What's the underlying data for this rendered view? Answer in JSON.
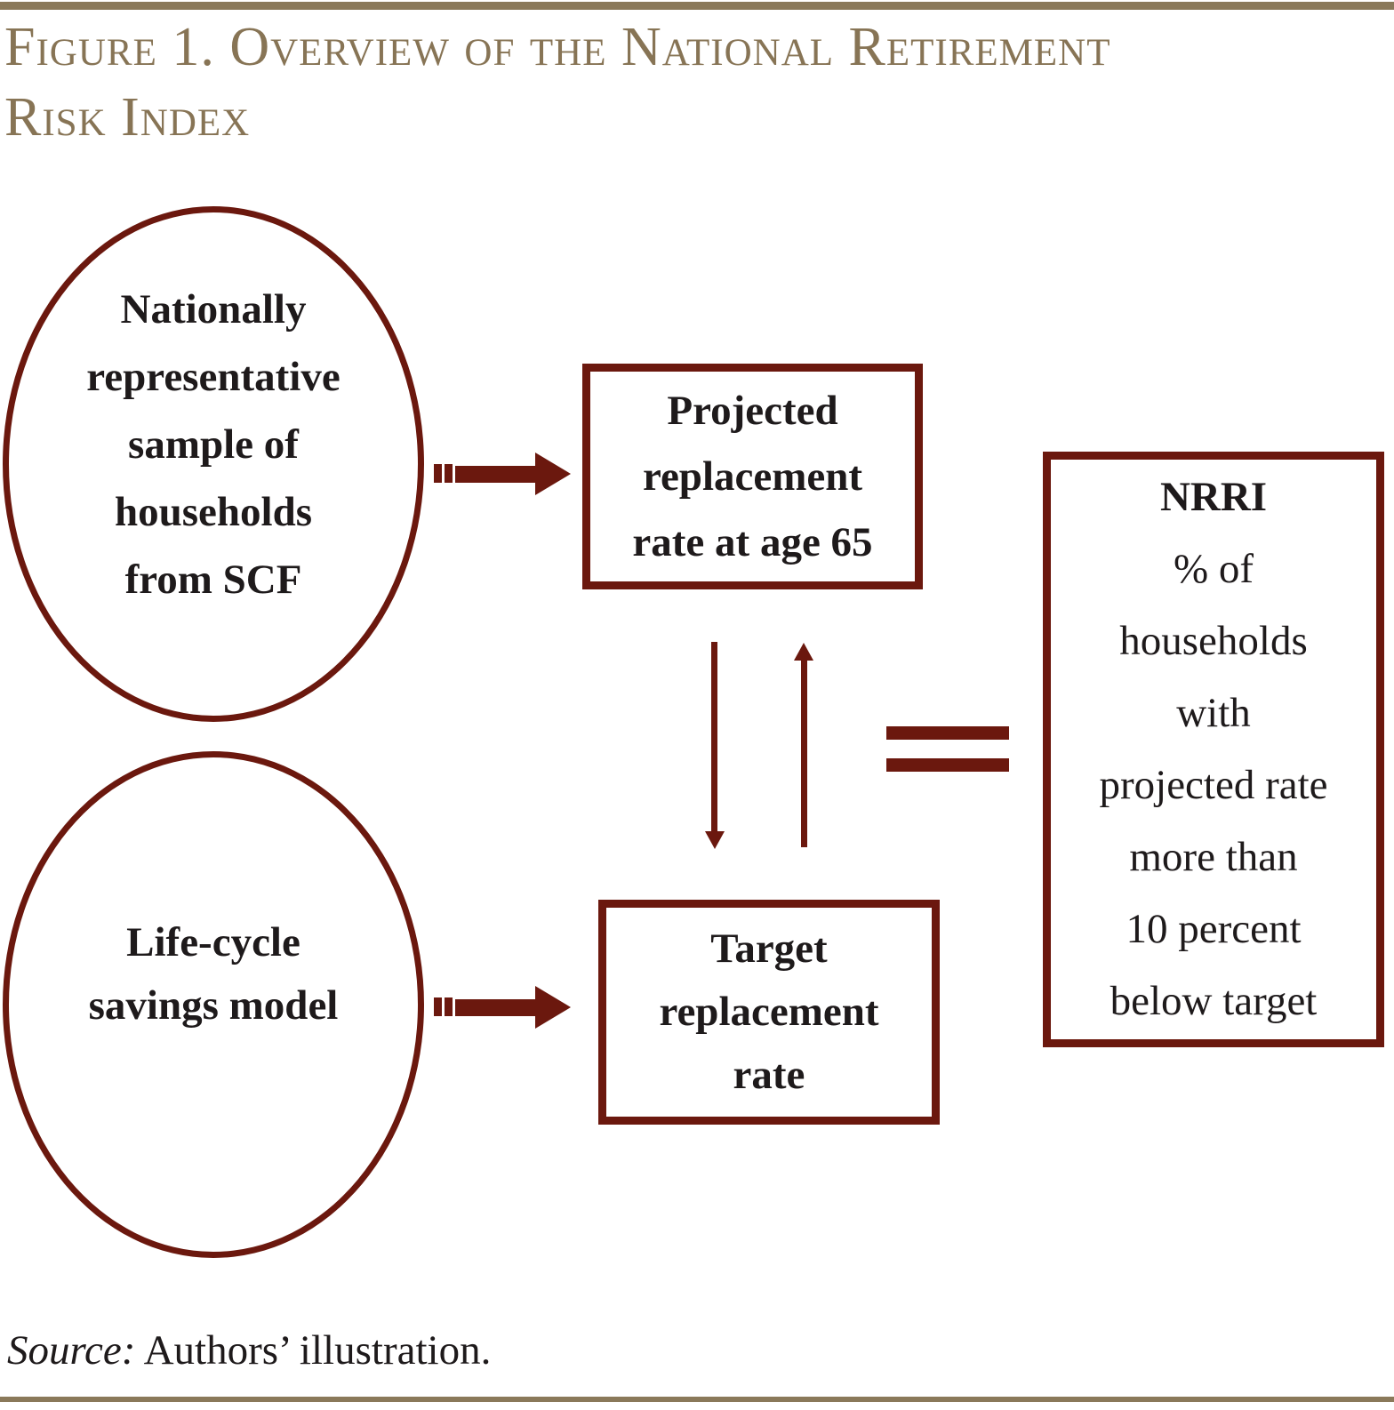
{
  "figure": {
    "title": "Figure 1. Overview of the National Retirement\nRisk Index",
    "source_label": "Source:",
    "source_text": " Authors’ illustration."
  },
  "diagram": {
    "colors": {
      "maroon": "#6b180e",
      "tan": "#8a795a",
      "tan-text": "#877455",
      "text": "#231f20"
    },
    "nodes": {
      "scf_sample": "Nationally\nrepresentative\nsample of\nhouseholds\nfrom SCF",
      "lifecycle_model": "Life-cycle\nsavings model",
      "projected_rate": "Projected\nreplacement\nrate at age 65",
      "target_rate": "Target\nreplacement\nrate",
      "nrri_heading": "NRRI",
      "nrri_body": "% of\nhouseholds\nwith\nprojected rate\nmore than\n10 percent\nbelow target"
    },
    "icons": {
      "arrow_right": "dashed-tail-right-arrow",
      "arrow_down": "thin-down-arrow",
      "arrow_up": "thin-up-arrow",
      "equals": "double-bar-equals"
    }
  }
}
